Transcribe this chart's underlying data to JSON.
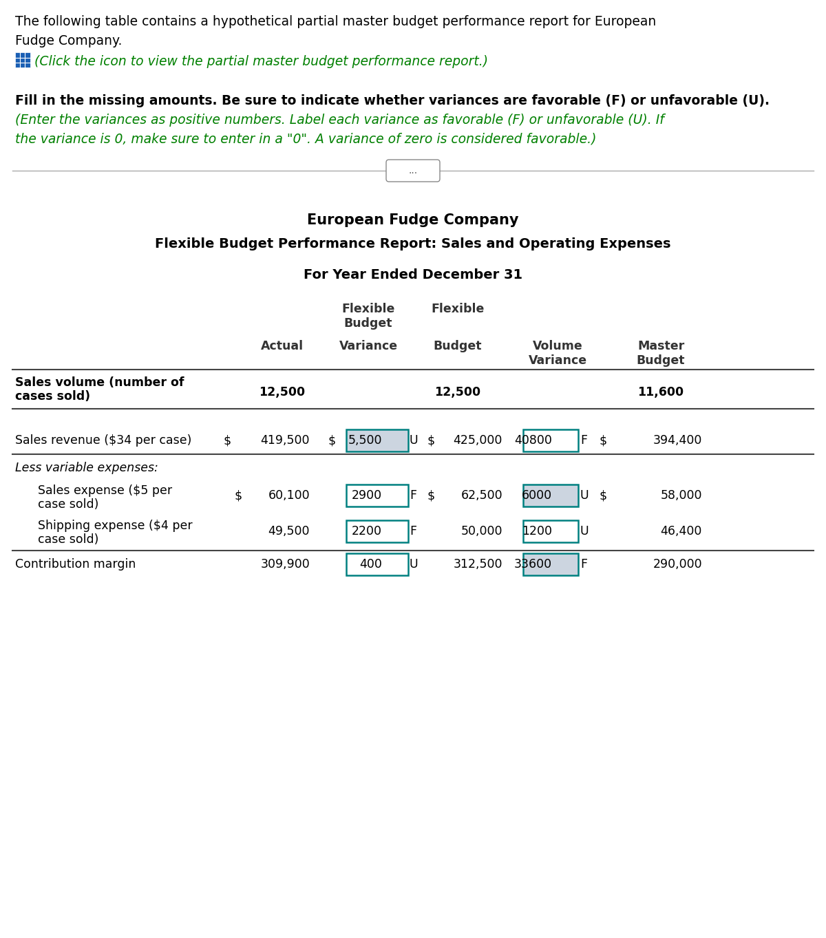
{
  "title1": "European Fudge Company",
  "title2": "Flexible Budget Performance Report: Sales and Operating Expenses",
  "title3": "For Year Ended December 31",
  "intro_line1": "The following table contains a hypothetical partial master budget performance report for European",
  "intro_line2": "Fudge Company.",
  "click_text": "(Click the icon to view the partial master budget performance report.)",
  "fill_bold": "Fill in the missing amounts. Be sure to indicate whether variances are favorable (F) or unfavorable (U).",
  "fill_green_line1": "(Enter the variances as positive numbers. Label each variance as favorable (F) or unfavorable (U). If",
  "fill_green_line2": "the variance is 0, make sure to enter in a \"0\". A variance of zero is considered favorable.)",
  "ellipsis": "...",
  "bg_color": "#ffffff",
  "green_color": "#008000",
  "blue_color": "#1a5fb4",
  "text_dark": "#333333",
  "box_border": "#008080",
  "shade_color": "#ccd5e0"
}
